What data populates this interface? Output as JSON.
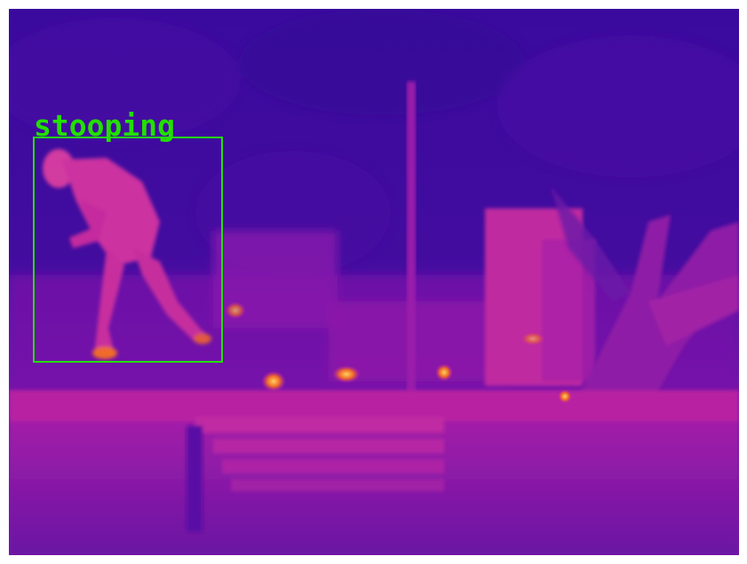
{
  "image": {
    "scene": "thermal-camera-outdoor-night",
    "palette": {
      "cold": "#3d0aa0",
      "cool": "#5a10b0",
      "mid": "#9a1ab0",
      "warm": "#c8289c",
      "hot": "#f06a2a",
      "hottest": "#ffd060"
    }
  },
  "detection": {
    "label": "stooping",
    "color": "#22e000"
  }
}
